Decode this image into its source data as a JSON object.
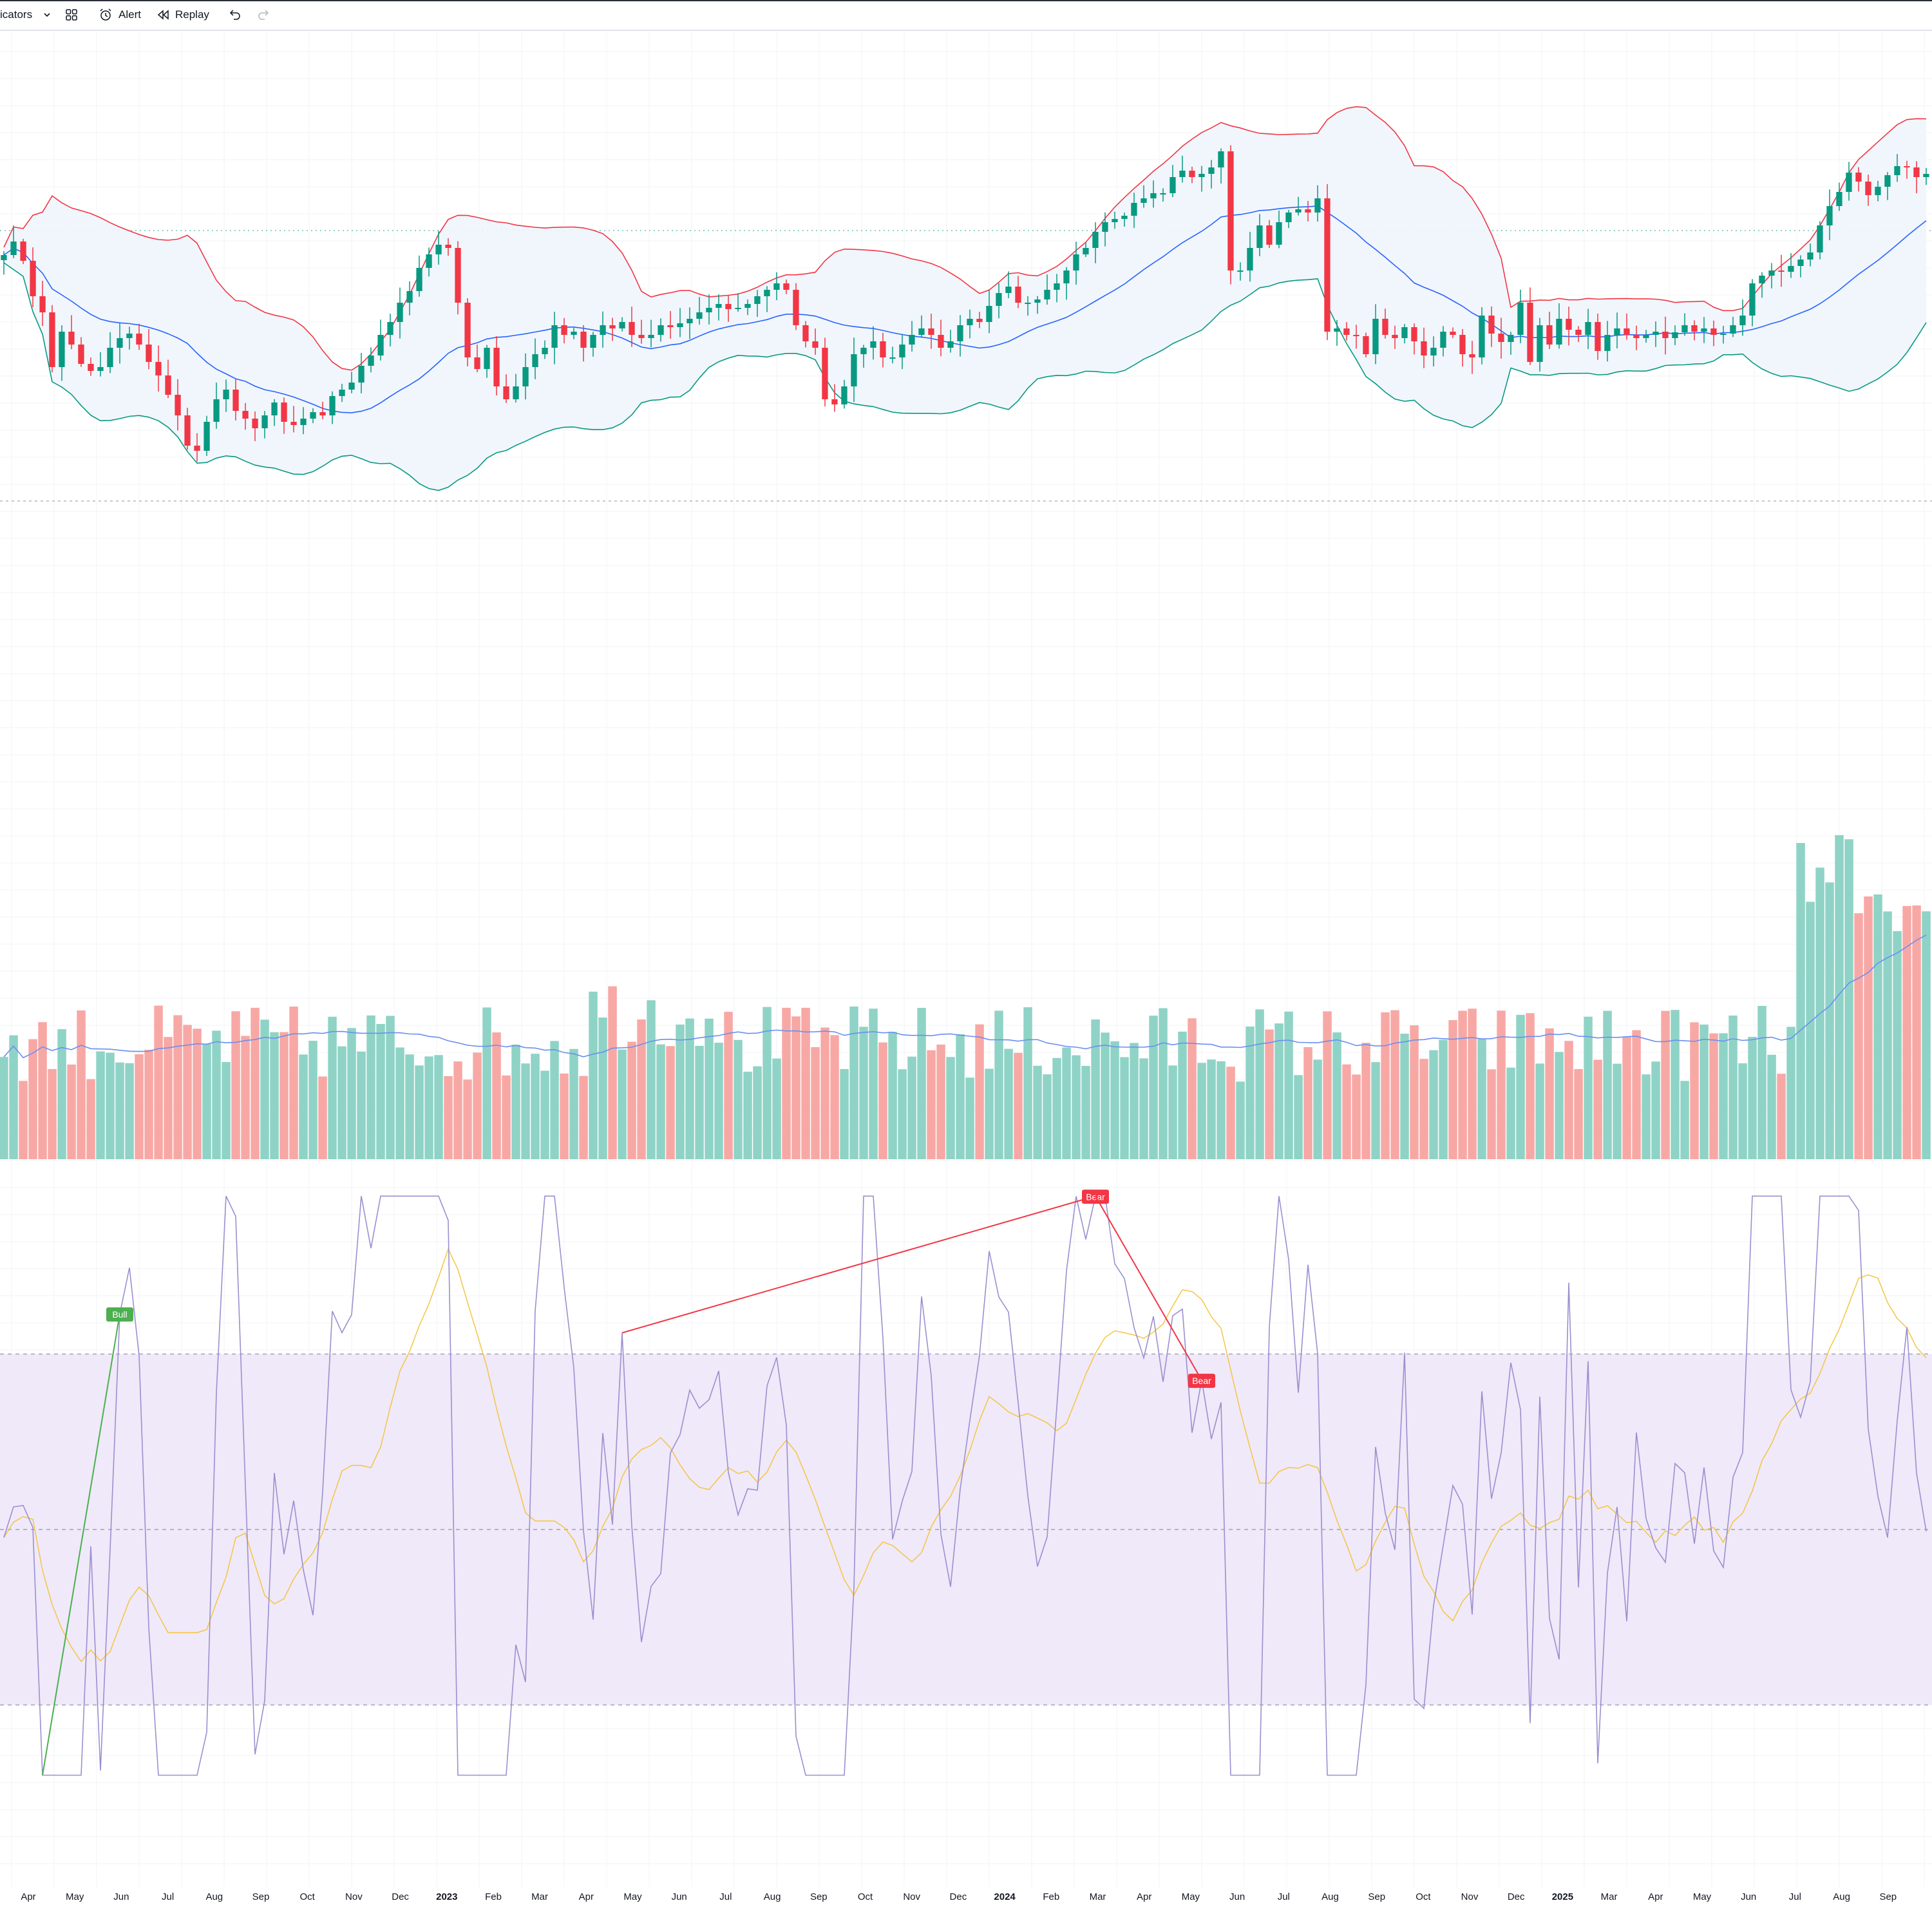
{
  "toolbar": {
    "indicators_label": "icators",
    "alert_label": "Alert",
    "replay_label": "Replay"
  },
  "colors": {
    "up": "#089981",
    "down": "#f23645",
    "volume_up": "#8fd3c6",
    "volume_down": "#f7a8a5",
    "bb_upper": "#f23645",
    "bb_lower": "#089981",
    "bb_basis": "#2962ff",
    "rsi_line": "#9c8fd0",
    "rsi_ma": "#f5c542",
    "rsi_band": "#efe9f9"
  },
  "x_axis": {
    "labels": [
      "Apr",
      "May",
      "Jun",
      "Jul",
      "Aug",
      "Sep",
      "Oct",
      "Nov",
      "Dec",
      "2023",
      "Feb",
      "Mar",
      "Apr",
      "May",
      "Jun",
      "Jul",
      "Aug",
      "Sep",
      "Oct",
      "Nov",
      "Dec",
      "2024",
      "Feb",
      "Mar",
      "Apr",
      "May",
      "Jun",
      "Jul",
      "Aug",
      "Sep",
      "Oct",
      "Nov",
      "Dec",
      "2025",
      "Mar",
      "Apr",
      "May",
      "Jun",
      "Jul",
      "Aug",
      "Sep"
    ],
    "bold": [
      "2023",
      "2024",
      "2025"
    ]
  },
  "rsi_labels": [
    {
      "id": "bull",
      "text": "Bull",
      "color": "#4caf50"
    },
    {
      "id": "bear1",
      "text": "Bear",
      "color": "#f23645"
    },
    {
      "id": "bear2",
      "text": "Bear",
      "color": "#f23645"
    }
  ],
  "chart_data": {
    "type": "candlestick",
    "timeframe": "weekly",
    "period": "Apr 2022 – Sep 2025",
    "close_trend": [
      396,
      375,
      405,
      460,
      485,
      570,
      515,
      535,
      565,
      576,
      570,
      540,
      525,
      518,
      535,
      562,
      583,
      613,
      645,
      692,
      700,
      655,
      620,
      605,
      638,
      650,
      665,
      645,
      625,
      655,
      660,
      650,
      640,
      645,
      615,
      605,
      594,
      568,
      552,
      520,
      500,
      470,
      452,
      416,
      395,
      380,
      385,
      470,
      555,
      573,
      540,
      600,
      620,
      600,
      570,
      550,
      540,
      505,
      520,
      515,
      540,
      520,
      505,
      510,
      500,
      520,
      525,
      520,
      505,
      508,
      502,
      495,
      485,
      478,
      472,
      480,
      478,
      472,
      460,
      450,
      440,
      450,
      505,
      530,
      540,
      620,
      628,
      600,
      550,
      540,
      530,
      555,
      555,
      535,
      520,
      510,
      520,
      540,
      530,
      505,
      495,
      500,
      475,
      455,
      445,
      470,
      470,
      465,
      450,
      440,
      420,
      395,
      385,
      360,
      345,
      340,
      335,
      315,
      308,
      300,
      300,
      275,
      265,
      275,
      270,
      260,
      235,
      420,
      420,
      385,
      350,
      380,
      345,
      330,
      325,
      330,
      308,
      515,
      510,
      520,
      522,
      550,
      495,
      520,
      525,
      508,
      530,
      552,
      540,
      515,
      520,
      550,
      555,
      490,
      518,
      531,
      520,
      470,
      562,
      505,
      535,
      495,
      512,
      520,
      500,
      545,
      520,
      510,
      520,
      525,
      520,
      515,
      525,
      516,
      505,
      515,
      510,
      520,
      518,
      505,
      490,
      440,
      428,
      420,
      422,
      413,
      403,
      392,
      350,
      320,
      298,
      268,
      282,
      303,
      290,
      272,
      258,
      260,
      275,
      270
    ],
    "ylabel_note": "y-axis price labels not visible",
    "bollinger": {
      "upper": "red",
      "basis": "blue",
      "lower": "green",
      "fill": "light blue"
    },
    "volume": {
      "ma_color": "blue"
    },
    "rsi": {
      "upper_band": 70,
      "middle_band": 50,
      "lower_band": 30,
      "divergences": [
        {
          "type": "Bull",
          "start": "May 2022",
          "end": "Jul 2022"
        },
        {
          "type": "Bear",
          "start": "Aug 2023",
          "end": "Apr 2024"
        },
        {
          "type": "Bear",
          "start": "Apr 2024",
          "end": "Jun 2024"
        }
      ]
    }
  }
}
